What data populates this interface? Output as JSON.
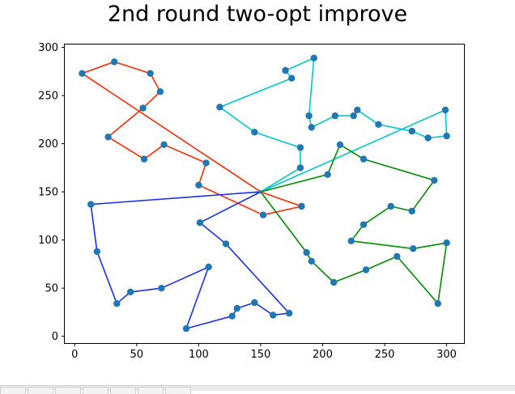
{
  "chart_data": {
    "type": "line",
    "title": "2nd round two-opt improve",
    "xlabel": "",
    "ylabel": "",
    "xlim": [
      -8,
      314
    ],
    "ylim": [
      -7,
      303
    ],
    "xticks": [
      0,
      50,
      100,
      150,
      200,
      250,
      300
    ],
    "yticks": [
      0,
      50,
      100,
      150,
      200,
      250,
      300
    ],
    "depot": [
      150,
      150
    ],
    "point_color": "#1f77b4",
    "series": [
      {
        "color": "#ff2a00",
        "points": [
          [
            150,
            150
          ],
          [
            183,
            135
          ],
          [
            152,
            126
          ],
          [
            100,
            157
          ],
          [
            106,
            180
          ],
          [
            72,
            199
          ],
          [
            56,
            184
          ],
          [
            27,
            207
          ],
          [
            55,
            237
          ],
          [
            69,
            254
          ],
          [
            61,
            273
          ],
          [
            32,
            285
          ],
          [
            6,
            273
          ],
          [
            150,
            150
          ]
        ]
      },
      {
        "color": "#00c8c8",
        "points": [
          [
            150,
            150
          ],
          [
            182,
            175
          ],
          [
            182,
            196
          ],
          [
            145,
            212
          ],
          [
            117,
            238
          ],
          [
            175,
            268
          ],
          [
            170,
            276
          ],
          [
            193,
            289
          ],
          [
            189,
            229
          ],
          [
            191,
            217
          ],
          [
            210,
            229
          ],
          [
            225,
            229
          ],
          [
            228,
            235
          ],
          [
            245,
            220
          ],
          [
            272,
            213
          ],
          [
            285,
            206
          ],
          [
            300,
            208
          ],
          [
            299,
            235
          ],
          [
            150,
            150
          ]
        ]
      },
      {
        "color": "#1a2ef0",
        "points": [
          [
            150,
            150
          ],
          [
            13,
            137
          ],
          [
            18,
            88
          ],
          [
            34,
            34
          ],
          [
            45,
            46
          ],
          [
            70,
            50
          ],
          [
            108,
            72
          ],
          [
            90,
            8
          ],
          [
            127,
            21
          ],
          [
            131,
            29
          ],
          [
            145,
            35
          ],
          [
            160,
            22
          ],
          [
            173,
            24
          ],
          [
            122,
            96
          ],
          [
            101,
            118
          ],
          [
            150,
            150
          ]
        ]
      },
      {
        "color": "#008c00",
        "points": [
          [
            150,
            150
          ],
          [
            204,
            168
          ],
          [
            214,
            199
          ],
          [
            233,
            184
          ],
          [
            290,
            162
          ],
          [
            272,
            130
          ],
          [
            255,
            135
          ],
          [
            233,
            116
          ],
          [
            223,
            99
          ],
          [
            273,
            91
          ],
          [
            300,
            97
          ],
          [
            293,
            34
          ],
          [
            260,
            83
          ],
          [
            235,
            69
          ],
          [
            209,
            56
          ],
          [
            191,
            78
          ],
          [
            187,
            87
          ],
          [
            150,
            150
          ]
        ]
      }
    ]
  }
}
